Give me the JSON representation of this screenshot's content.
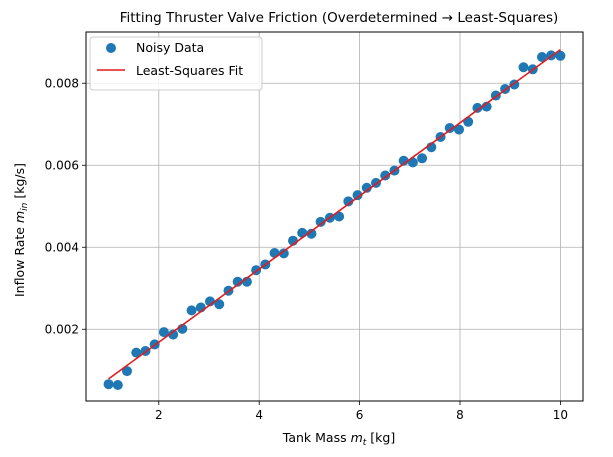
{
  "chart_data": {
    "type": "scatter+line",
    "title": "Fitting Thruster Valve Friction (Overdetermined → Least-Squares)",
    "xlabel_main": "Tank Mass ",
    "xlabel_var": "m",
    "xlabel_sub": "t",
    "xlabel_unit": " [kg]",
    "ylabel_main": "Inflow Rate ",
    "ylabel_var": "m",
    "ylabel_sub": "in",
    "ylabel_unit": " [kg/s]",
    "xlim": [
      0.55,
      10.45
    ],
    "ylim": [
      0.00025,
      0.00925
    ],
    "xticks": [
      2,
      4,
      6,
      8,
      10
    ],
    "xtick_labels": [
      "2",
      "4",
      "6",
      "8",
      "10"
    ],
    "yticks": [
      0.002,
      0.004,
      0.006,
      0.008
    ],
    "ytick_labels": [
      "0.002",
      "0.004",
      "0.006",
      "0.008"
    ],
    "grid": true,
    "legend_position": "top-left",
    "colors": {
      "scatter": "#1f77b4",
      "fit": "#e41a1c",
      "grid": "#b0b0b0"
    },
    "series": [
      {
        "name": "Noisy Data",
        "kind": "scatter",
        "x": [
          1.0,
          1.184,
          1.367,
          1.551,
          1.735,
          1.918,
          2.102,
          2.286,
          2.469,
          2.653,
          2.837,
          3.02,
          3.204,
          3.388,
          3.571,
          3.755,
          3.939,
          4.122,
          4.306,
          4.49,
          4.673,
          4.857,
          5.041,
          5.224,
          5.408,
          5.592,
          5.776,
          5.959,
          6.143,
          6.327,
          6.51,
          6.694,
          6.878,
          7.061,
          7.245,
          7.429,
          7.612,
          7.796,
          7.98,
          8.163,
          8.347,
          8.531,
          8.714,
          8.898,
          9.082,
          9.265,
          9.449,
          9.633,
          9.816,
          10.0
        ],
        "y": [
          0.00066,
          0.00064,
          0.00098,
          0.00143,
          0.00147,
          0.00163,
          0.00193,
          0.00187,
          0.00201,
          0.00246,
          0.00253,
          0.00268,
          0.00261,
          0.00294,
          0.00316,
          0.00316,
          0.00344,
          0.00358,
          0.00386,
          0.00385,
          0.00416,
          0.00435,
          0.00433,
          0.00462,
          0.00472,
          0.00475,
          0.00512,
          0.00527,
          0.00545,
          0.00557,
          0.00575,
          0.00587,
          0.00611,
          0.00607,
          0.00617,
          0.00644,
          0.00669,
          0.00691,
          0.00687,
          0.00706,
          0.0074,
          0.00743,
          0.0077,
          0.00786,
          0.00797,
          0.00839,
          0.00834,
          0.00864,
          0.00868,
          0.00867
        ]
      },
      {
        "name": "Least-Squares Fit",
        "kind": "line",
        "x": [
          1.0,
          10.0
        ],
        "y": [
          0.00079,
          0.00882
        ]
      }
    ]
  }
}
